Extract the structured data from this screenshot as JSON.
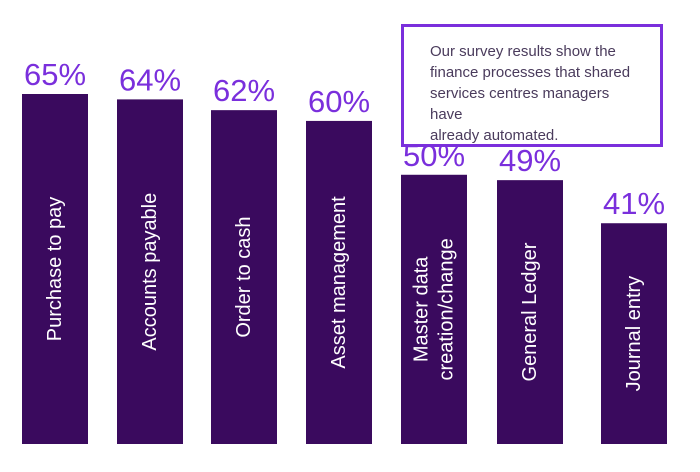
{
  "chart_data": {
    "type": "bar",
    "categories": [
      "Purchase to pay",
      "Accounts payable",
      "Order to cash",
      "Asset management",
      "Master data creation/change",
      "General Ledger",
      "Journal entry"
    ],
    "label_lines": [
      [
        "Purchase to pay"
      ],
      [
        "Accounts payable"
      ],
      [
        "Order to cash"
      ],
      [
        "Asset management"
      ],
      [
        "Master data",
        "creation/change"
      ],
      [
        "General Ledger"
      ],
      [
        "Journal entry"
      ]
    ],
    "values": [
      65,
      64,
      62,
      60,
      50,
      49,
      41
    ],
    "value_labels": [
      "65%",
      "64%",
      "62%",
      "60%",
      "50%",
      "49%",
      "41%"
    ],
    "unit": "%",
    "title": "",
    "xlabel": "",
    "ylabel": "",
    "annotation": "Our survey results show the finance processes that shared services centres managers have already automated.",
    "grid": false,
    "legend": "none"
  },
  "note": {
    "lines": [
      "Our survey results show the",
      "finance processes that shared",
      "services centres managers have",
      "already automated."
    ]
  },
  "colors": {
    "bar": "#3a0a5e",
    "value_label": "#7a2fdc",
    "bar_label": "#ffffff",
    "note_border": "#7a2fdc",
    "note_text": "#4a3b5c"
  }
}
